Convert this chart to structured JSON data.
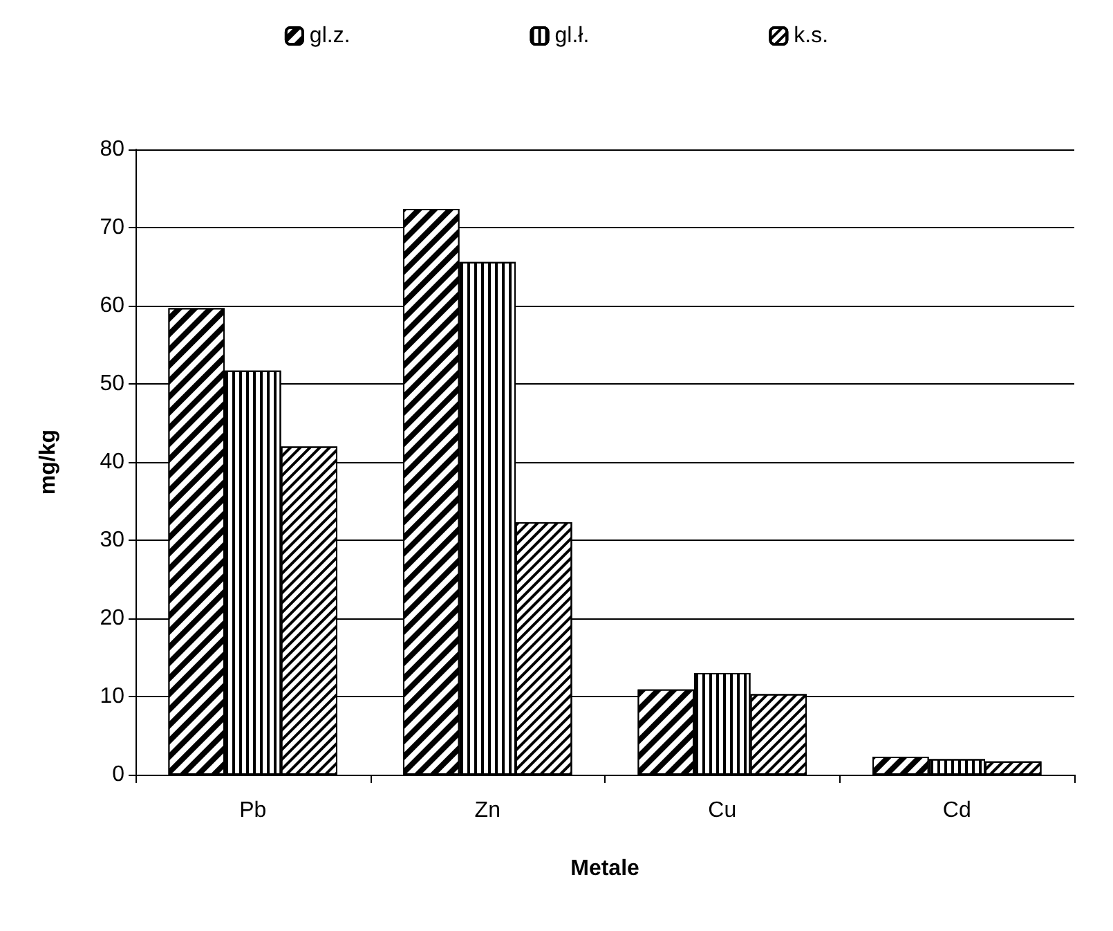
{
  "chart_data": {
    "type": "bar",
    "xlabel": "Metale",
    "ylabel": "mg/kg",
    "categories": [
      "Pb",
      "Zn",
      "Cu",
      "Cd"
    ],
    "series": [
      {
        "name": "gl.z.",
        "color": "#000000",
        "values": [
          59.7,
          72.4,
          10.9,
          2.3
        ]
      },
      {
        "name": "gl.ł.",
        "color": "#ffffff",
        "values": [
          51.7,
          65.6,
          13.0,
          2.0
        ]
      },
      {
        "name": "k.s.",
        "color": "#ffffff",
        "values": [
          42.0,
          32.3,
          10.3,
          1.7
        ]
      }
    ],
    "ylim": [
      0,
      80
    ],
    "yticks": [
      0,
      10,
      20,
      30,
      40,
      50,
      60,
      70,
      80
    ],
    "grid": "y",
    "legend": "top"
  }
}
